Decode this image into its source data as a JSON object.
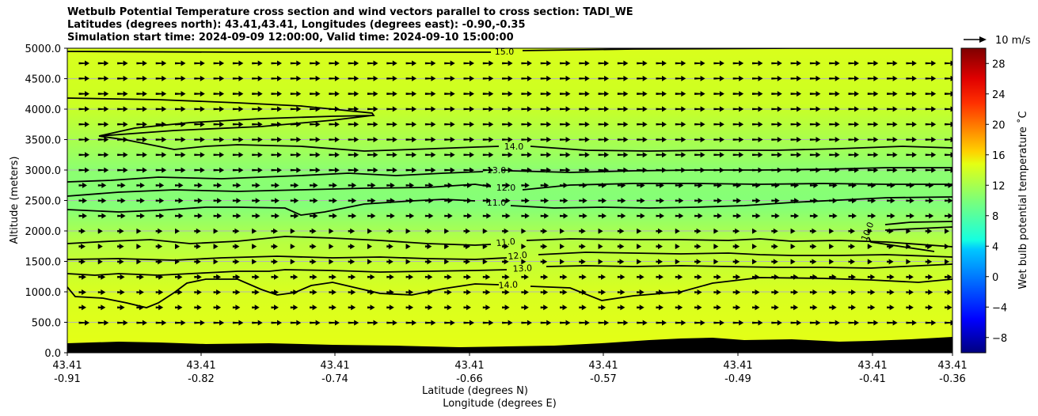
{
  "chart_data": {
    "type": "cross-section",
    "title_lines": [
      "Wetbulb Potential Temperature cross section and wind vectors parallel to cross section: TADI_WE",
      "Latitudes (degrees north): 43.41,43.41, Longitudes (degrees east): -0.90,-0.35",
      "Simulation start time: 2024-09-09 12:00:00, Valid time: 2024-09-10 15:00:00"
    ],
    "ylabel": "Altitude (meters)",
    "xlabel_lat": "Latitude (degrees N)",
    "xlabel_lon": "Longitude (degrees E)",
    "ylim": [
      0,
      5000
    ],
    "yticks": [
      "0.0",
      "500.0",
      "1000.0",
      "1500.0",
      "2000.0",
      "2500.0",
      "3000.0",
      "3500.0",
      "4000.0",
      "4500.0",
      "5000.0"
    ],
    "xticks": [
      {
        "lat": "43.41",
        "lon": "-0.91"
      },
      {
        "lat": "43.41",
        "lon": "-0.82"
      },
      {
        "lat": "43.41",
        "lon": "-0.74"
      },
      {
        "lat": "43.41",
        "lon": "-0.66"
      },
      {
        "lat": "43.41",
        "lon": "-0.57"
      },
      {
        "lat": "43.41",
        "lon": "-0.49"
      },
      {
        "lat": "43.41",
        "lon": "-0.41"
      },
      {
        "lat": "43.41",
        "lon": "-0.36"
      }
    ],
    "contour_labels": [
      "15.0",
      "14.0",
      "13.0",
      "12.0",
      "11.0",
      "10.0",
      "11.0",
      "12.0",
      "13.0",
      "14.0"
    ],
    "colorbar": {
      "label": "Wet bulb potential temperature ˚C",
      "range": [
        -10,
        30
      ],
      "ticks": [
        "−8",
        "−4",
        "0",
        "4",
        "8",
        "12",
        "16",
        "20",
        "24",
        "28"
      ]
    },
    "wind_key": "10 m/s",
    "terrain_color": "#000000",
    "field_color_low": "#7cff7a",
    "field_color_high": "#d8ff1e"
  }
}
